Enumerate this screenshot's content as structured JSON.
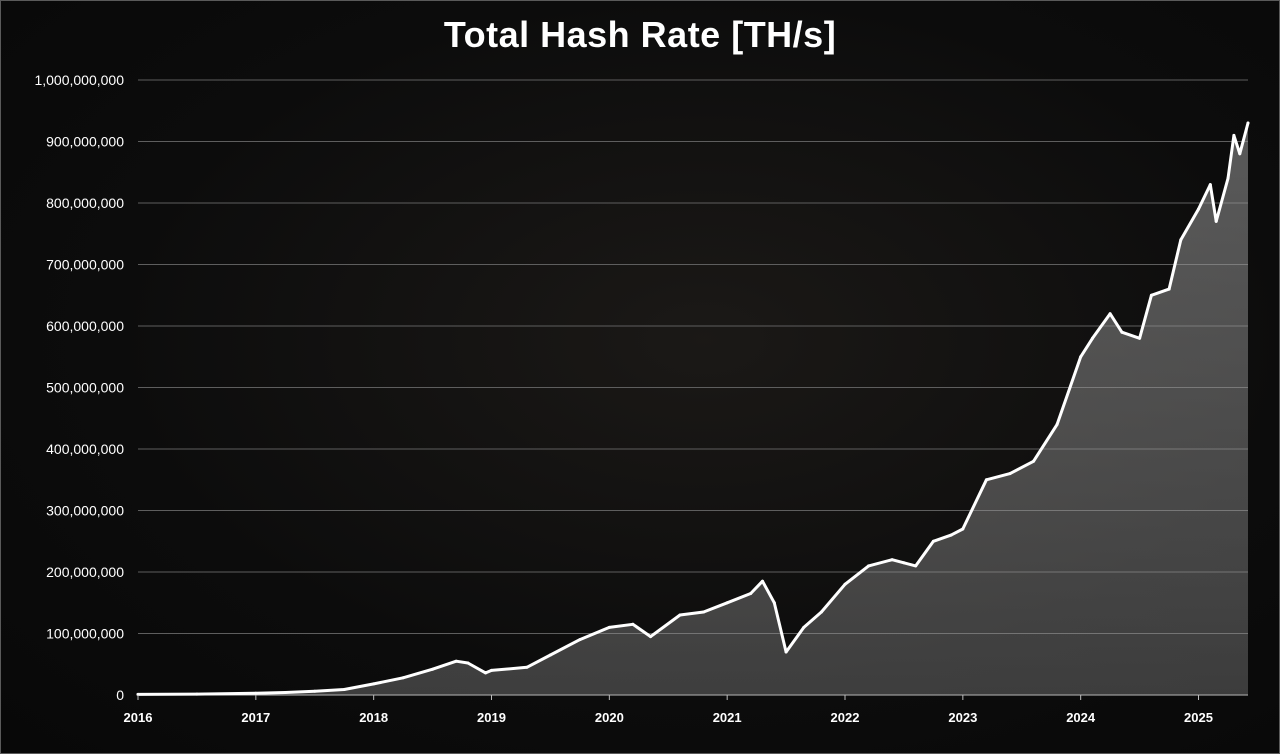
{
  "chart_data": {
    "type": "area",
    "title": "Total Hash Rate [TH/s]",
    "xlabel": "",
    "ylabel": "",
    "x_ticks": [
      "2016",
      "2017",
      "2018",
      "2019",
      "2020",
      "2021",
      "2022",
      "2023",
      "2024",
      "2025"
    ],
    "xlim": [
      2016.0,
      2025.42
    ],
    "ylim": [
      0,
      1000000000
    ],
    "y_ticks": [
      {
        "value": 0,
        "label": "0"
      },
      {
        "value": 100000000,
        "label": "100,000,000"
      },
      {
        "value": 200000000,
        "label": "200,000,000"
      },
      {
        "value": 300000000,
        "label": "300,000,000"
      },
      {
        "value": 400000000,
        "label": "400,000,000"
      },
      {
        "value": 500000000,
        "label": "500,000,000"
      },
      {
        "value": 600000000,
        "label": "600,000,000"
      },
      {
        "value": 700000000,
        "label": "700,000,000"
      },
      {
        "value": 800000000,
        "label": "800,000,000"
      },
      {
        "value": 900000000,
        "label": "900,000,000"
      },
      {
        "value": 1000000000,
        "label": "1,000,000,000"
      }
    ],
    "grid": true,
    "legend": "none",
    "colors": {
      "line": "#ffffff",
      "fill": "#9a9a9a",
      "grid": "#5e5e5e",
      "background": "#0b0b0b"
    },
    "series": [
      {
        "points": [
          [
            2016.0,
            1000000
          ],
          [
            2016.5,
            1500000
          ],
          [
            2017.0,
            3000000
          ],
          [
            2017.25,
            4000000
          ],
          [
            2017.5,
            6000000
          ],
          [
            2017.75,
            9000000
          ],
          [
            2018.0,
            18000000
          ],
          [
            2018.25,
            28000000
          ],
          [
            2018.5,
            42000000
          ],
          [
            2018.7,
            55000000
          ],
          [
            2018.8,
            52000000
          ],
          [
            2018.95,
            36000000
          ],
          [
            2019.0,
            40000000
          ],
          [
            2019.3,
            45000000
          ],
          [
            2019.5,
            65000000
          ],
          [
            2019.75,
            90000000
          ],
          [
            2020.0,
            110000000
          ],
          [
            2020.2,
            115000000
          ],
          [
            2020.35,
            95000000
          ],
          [
            2020.6,
            130000000
          ],
          [
            2020.8,
            135000000
          ],
          [
            2021.0,
            150000000
          ],
          [
            2021.2,
            165000000
          ],
          [
            2021.3,
            185000000
          ],
          [
            2021.4,
            150000000
          ],
          [
            2021.5,
            70000000
          ],
          [
            2021.65,
            110000000
          ],
          [
            2021.8,
            135000000
          ],
          [
            2022.0,
            180000000
          ],
          [
            2022.2,
            210000000
          ],
          [
            2022.4,
            220000000
          ],
          [
            2022.5,
            215000000
          ],
          [
            2022.6,
            210000000
          ],
          [
            2022.75,
            250000000
          ],
          [
            2022.9,
            260000000
          ],
          [
            2023.0,
            270000000
          ],
          [
            2023.2,
            350000000
          ],
          [
            2023.4,
            360000000
          ],
          [
            2023.6,
            380000000
          ],
          [
            2023.8,
            440000000
          ],
          [
            2024.0,
            550000000
          ],
          [
            2024.1,
            580000000
          ],
          [
            2024.25,
            620000000
          ],
          [
            2024.35,
            590000000
          ],
          [
            2024.5,
            580000000
          ],
          [
            2024.6,
            650000000
          ],
          [
            2024.75,
            660000000
          ],
          [
            2024.85,
            740000000
          ],
          [
            2025.0,
            790000000
          ],
          [
            2025.1,
            830000000
          ],
          [
            2025.15,
            770000000
          ],
          [
            2025.25,
            840000000
          ],
          [
            2025.3,
            910000000
          ],
          [
            2025.35,
            880000000
          ],
          [
            2025.42,
            930000000
          ]
        ]
      }
    ]
  }
}
